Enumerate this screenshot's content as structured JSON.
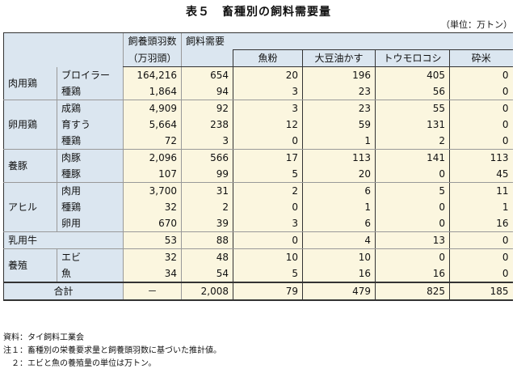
{
  "title": "表５　畜種別の飼料需要量",
  "unit": "（単位：万トン）",
  "headers": {
    "heads_line1": "飼養頭羽数",
    "heads_line2": "（万羽頭）",
    "demand": "飼料需要",
    "fishmeal": "魚粉",
    "soymeal": "大豆油かす",
    "corn": "トウモロコシ",
    "rice": "砕米"
  },
  "rows": [
    {
      "cat": "肉用鶏",
      "sub": "ブロイラー",
      "heads": "164,216",
      "demand": "654",
      "fishmeal": "20",
      "soymeal": "196",
      "corn": "405",
      "rice": "0"
    },
    {
      "cat": "",
      "sub": "種鶏",
      "heads": "1,864",
      "demand": "94",
      "fishmeal": "3",
      "soymeal": "23",
      "corn": "56",
      "rice": "0"
    },
    {
      "cat": "卵用鶏",
      "sub": "成鶏",
      "heads": "4,909",
      "demand": "92",
      "fishmeal": "3",
      "soymeal": "23",
      "corn": "55",
      "rice": "0"
    },
    {
      "cat": "",
      "sub": "育すう",
      "heads": "5,664",
      "demand": "238",
      "fishmeal": "12",
      "soymeal": "59",
      "corn": "131",
      "rice": "0"
    },
    {
      "cat": "",
      "sub": "種鶏",
      "heads": "72",
      "demand": "3",
      "fishmeal": "0",
      "soymeal": "1",
      "corn": "2",
      "rice": "0"
    },
    {
      "cat": "養豚",
      "sub": "肉豚",
      "heads": "2,096",
      "demand": "566",
      "fishmeal": "17",
      "soymeal": "113",
      "corn": "141",
      "rice": "113"
    },
    {
      "cat": "",
      "sub": "種豚",
      "heads": "107",
      "demand": "99",
      "fishmeal": "5",
      "soymeal": "20",
      "corn": "0",
      "rice": "45"
    },
    {
      "cat": "アヒル",
      "sub": "肉用",
      "heads": "3,700",
      "demand": "31",
      "fishmeal": "2",
      "soymeal": "6",
      "corn": "5",
      "rice": "11"
    },
    {
      "cat": "",
      "sub": "種鶏",
      "heads": "32",
      "demand": "2",
      "fishmeal": "0",
      "soymeal": "1",
      "corn": "0",
      "rice": "1"
    },
    {
      "cat": "",
      "sub": "卵用",
      "heads": "670",
      "demand": "39",
      "fishmeal": "3",
      "soymeal": "6",
      "corn": "0",
      "rice": "16"
    },
    {
      "cat": "乳用牛",
      "sub": "",
      "heads": "53",
      "demand": "88",
      "fishmeal": "0",
      "soymeal": "4",
      "corn": "13",
      "rice": "0"
    },
    {
      "cat": "養殖",
      "sub": "エビ",
      "heads": "32",
      "demand": "48",
      "fishmeal": "10",
      "soymeal": "10",
      "corn": "0",
      "rice": "0"
    },
    {
      "cat": "",
      "sub": "魚",
      "heads": "34",
      "demand": "54",
      "fishmeal": "5",
      "soymeal": "16",
      "corn": "16",
      "rice": "0"
    }
  ],
  "total": {
    "label": "合計",
    "heads": "－",
    "demand": "2,008",
    "fishmeal": "79",
    "soymeal": "479",
    "corn": "825",
    "rice": "185"
  },
  "notes": [
    "資料：タイ飼料工業会",
    "注１：畜種別の栄養要求量と飼養頭羽数に基づいた推計値。",
    "　２：エビと魚の養殖量の単位は万トン。"
  ]
}
